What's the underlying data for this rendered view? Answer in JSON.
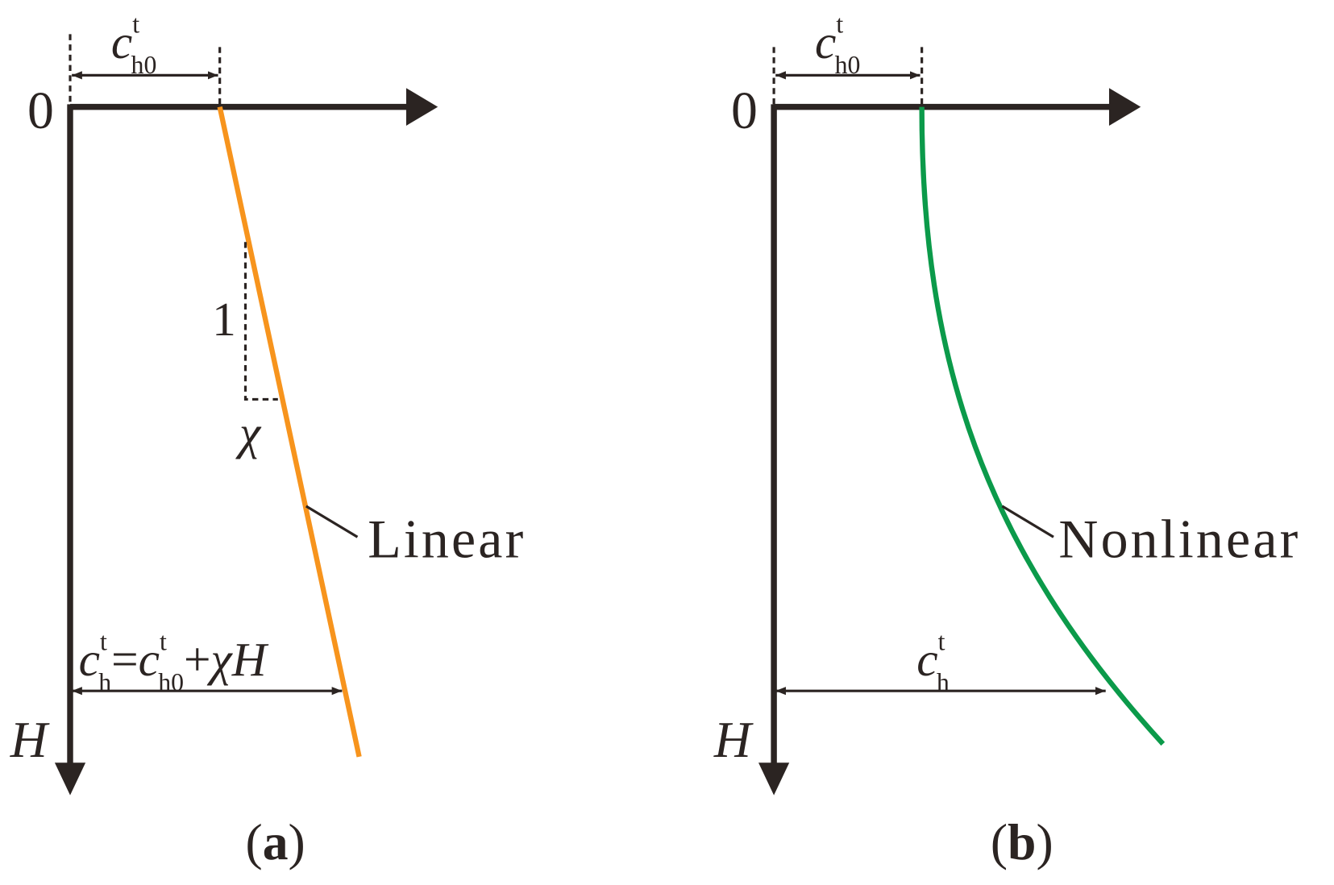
{
  "panels": [
    {
      "origin_label": "0",
      "depth_label": "H",
      "top_dimension": {
        "base": "c",
        "sup": "t",
        "sub": "h0"
      },
      "slope_rise": "1",
      "slope_run": "χ",
      "curve_label": "Linear",
      "bottom_formula": [
        {
          "base": "c",
          "sup": "t",
          "sub": "h"
        },
        "=",
        {
          "base": "c",
          "sup": "t",
          "sub": "h0"
        },
        "+",
        "χ",
        "H"
      ],
      "caption": [
        "(",
        "a",
        ")"
      ]
    },
    {
      "origin_label": "0",
      "depth_label": "H",
      "top_dimension": {
        "base": "c",
        "sup": "t",
        "sub": "h0"
      },
      "curve_label": "Nonlinear",
      "bottom_dimension": {
        "base": "c",
        "sup": "t",
        "sub": "h"
      },
      "caption": [
        "(",
        "b",
        ")"
      ]
    }
  ]
}
